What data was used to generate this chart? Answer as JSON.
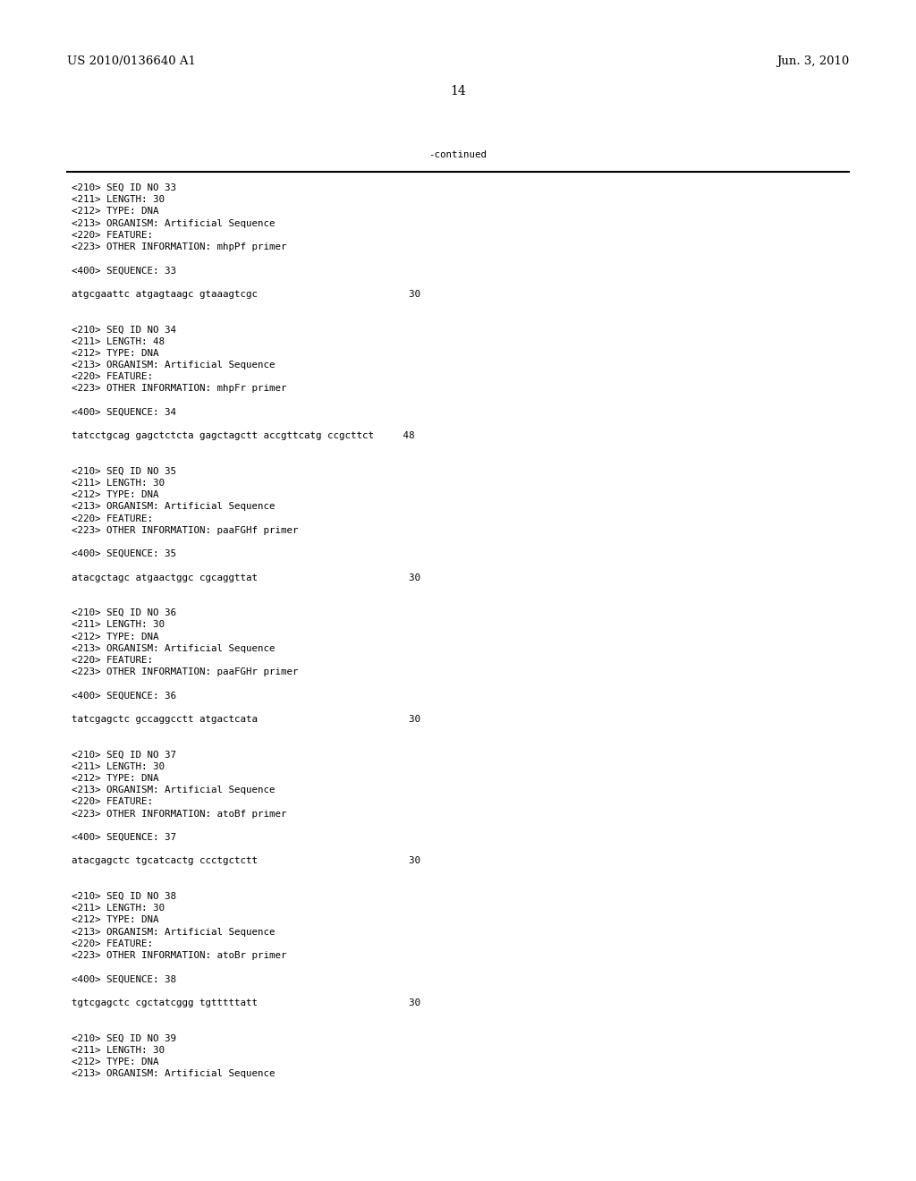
{
  "header_left": "US 2010/0136640 A1",
  "header_right": "Jun. 3, 2010",
  "page_number": "14",
  "continued_text": "-continued",
  "background_color": "#ffffff",
  "text_color": "#000000",
  "font_size_header": 9.5,
  "font_size_mono": 7.8,
  "font_size_page": 10,
  "content_lines": [
    "<210> SEQ ID NO 33",
    "<211> LENGTH: 30",
    "<212> TYPE: DNA",
    "<213> ORGANISM: Artificial Sequence",
    "<220> FEATURE:",
    "<223> OTHER INFORMATION: mhpPf primer",
    "",
    "<400> SEQUENCE: 33",
    "",
    "atgcgaattc atgagtaagc gtaaagtcgc                          30",
    "",
    "",
    "<210> SEQ ID NO 34",
    "<211> LENGTH: 48",
    "<212> TYPE: DNA",
    "<213> ORGANISM: Artificial Sequence",
    "<220> FEATURE:",
    "<223> OTHER INFORMATION: mhpFr primer",
    "",
    "<400> SEQUENCE: 34",
    "",
    "tatcctgcag gagctctcta gagctagctt accgttcatg ccgcttct     48",
    "",
    "",
    "<210> SEQ ID NO 35",
    "<211> LENGTH: 30",
    "<212> TYPE: DNA",
    "<213> ORGANISM: Artificial Sequence",
    "<220> FEATURE:",
    "<223> OTHER INFORMATION: paaFGHf primer",
    "",
    "<400> SEQUENCE: 35",
    "",
    "atacgctagc atgaactggc cgcaggttat                          30",
    "",
    "",
    "<210> SEQ ID NO 36",
    "<211> LENGTH: 30",
    "<212> TYPE: DNA",
    "<213> ORGANISM: Artificial Sequence",
    "<220> FEATURE:",
    "<223> OTHER INFORMATION: paaFGHr primer",
    "",
    "<400> SEQUENCE: 36",
    "",
    "tatcgagctc gccaggcctt atgactcata                          30",
    "",
    "",
    "<210> SEQ ID NO 37",
    "<211> LENGTH: 30",
    "<212> TYPE: DNA",
    "<213> ORGANISM: Artificial Sequence",
    "<220> FEATURE:",
    "<223> OTHER INFORMATION: atoBf primer",
    "",
    "<400> SEQUENCE: 37",
    "",
    "atacgagctc tgcatcactg ccctgctctt                          30",
    "",
    "",
    "<210> SEQ ID NO 38",
    "<211> LENGTH: 30",
    "<212> TYPE: DNA",
    "<213> ORGANISM: Artificial Sequence",
    "<220> FEATURE:",
    "<223> OTHER INFORMATION: atoBr primer",
    "",
    "<400> SEQUENCE: 38",
    "",
    "tgtcgagctc cgctatcggg tgtttttatt                          30",
    "",
    "",
    "<210> SEQ ID NO 39",
    "<211> LENGTH: 30",
    "<212> TYPE: DNA",
    "<213> ORGANISM: Artificial Sequence"
  ]
}
